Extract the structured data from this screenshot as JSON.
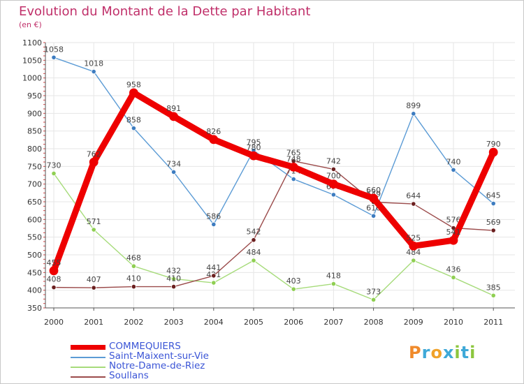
{
  "title": "Evolution du Montant de la Dette par Habitant",
  "unit": "(en €)",
  "logo_text": "Proxiti",
  "colors": {
    "title": "#c0306a",
    "axis_text": "#333333",
    "grid": "#e6e6e6",
    "legend_text": "#3b55d6"
  },
  "chart_data": {
    "type": "line",
    "x": [
      2000,
      2001,
      2002,
      2003,
      2004,
      2005,
      2006,
      2007,
      2008,
      2009,
      2010,
      2011
    ],
    "ylim": [
      350,
      1100
    ],
    "yticks": [
      350,
      400,
      450,
      500,
      550,
      600,
      650,
      700,
      750,
      800,
      850,
      900,
      950,
      1000,
      1050,
      1100
    ],
    "grid": true,
    "legend_position": "bottom-left",
    "series": [
      {
        "name": "Saint-Maixent-sur-Vie",
        "color": "#5b9bd5",
        "marker": "#3d7cc0",
        "values": [
          1058,
          1018,
          858,
          734,
          586,
          795,
          714,
          670,
          610,
          899,
          740,
          645
        ],
        "labels": [
          "1058",
          "1018",
          "858",
          "734",
          "586",
          "795",
          "714",
          "670",
          "610",
          "899",
          "740",
          "645"
        ]
      },
      {
        "name": "Notre-Dame-de-Riez",
        "color": "#a6db7a",
        "marker": "#8fcf52",
        "values": [
          730,
          571,
          468,
          432,
          421,
          484,
          403,
          418,
          373,
          484,
          436,
          385
        ],
        "labels": [
          "730",
          "571",
          "468",
          "432",
          "421",
          "484",
          "403",
          "418",
          "373",
          "484",
          "436",
          "385"
        ]
      },
      {
        "name": "Soullans",
        "color": "#9b4b4b",
        "marker": "#6b1f1f",
        "values": [
          408,
          407,
          410,
          410,
          441,
          542,
          765,
          742,
          649,
          644,
          576,
          569
        ],
        "labels": [
          "408",
          "407",
          "410",
          "410",
          "441",
          "542",
          "765",
          "742",
          "649",
          "644",
          "576",
          "569"
        ]
      },
      {
        "name": "COMMEQUIERS",
        "color": "#ee0000",
        "marker": "#ee0000",
        "values": [
          455,
          762,
          958,
          891,
          826,
          780,
          748,
          700,
          660,
          525,
          541,
          790
        ],
        "labels": [
          "455",
          "762",
          "958",
          "891",
          "826",
          "780",
          "748",
          "700",
          "660",
          "525",
          "541",
          "790"
        ]
      }
    ],
    "legend": [
      {
        "name": "COMMEQUIERS",
        "color": "#ee0000",
        "thick": true
      },
      {
        "name": "Saint-Maixent-sur-Vie",
        "color": "#5b9bd5",
        "thick": false
      },
      {
        "name": "Notre-Dame-de-Riez",
        "color": "#a6db7a",
        "thick": false
      },
      {
        "name": "Soullans",
        "color": "#9b4b4b",
        "thick": false
      }
    ]
  }
}
